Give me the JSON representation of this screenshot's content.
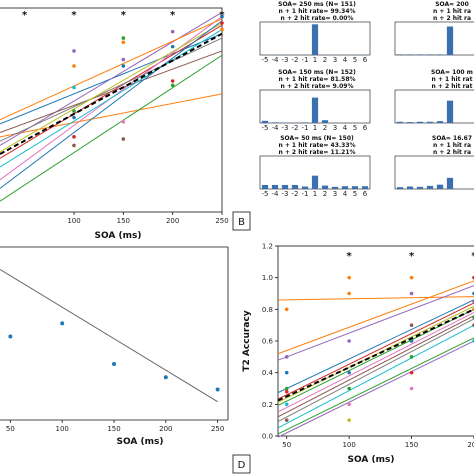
{
  "panel_labels": {
    "b": "B",
    "d": "D"
  },
  "chart_data": [
    {
      "type": "line",
      "panel": "A",
      "xlabel": "SOA (ms)",
      "ylabel": "",
      "xlim": [
        25,
        250
      ],
      "ylim": [
        0.05,
        1.0
      ],
      "xticks": [
        100,
        150,
        200,
        250
      ],
      "significance_markers": [
        {
          "x": 50,
          "label": "*"
        },
        {
          "x": 100,
          "label": "*"
        },
        {
          "x": 150,
          "label": "*"
        },
        {
          "x": 200,
          "label": "*"
        },
        {
          "x": 250,
          "label": "*"
        }
      ],
      "grid": false,
      "fit_lines": [
        {
          "color": "#1f77b4",
          "y25": 0.46,
          "y250": 0.88
        },
        {
          "color": "#ff7f0e",
          "y25": 0.4,
          "y250": 0.6
        },
        {
          "color": "#2ca02c",
          "y25": 0.1,
          "y250": 0.78
        },
        {
          "color": "#d62728",
          "y25": 0.3,
          "y250": 0.92
        },
        {
          "color": "#9467bd",
          "y25": 0.36,
          "y250": 0.98
        },
        {
          "color": "#8c564b",
          "y25": 0.42,
          "y250": 0.8
        },
        {
          "color": "#e377c2",
          "y25": 0.2,
          "y250": 0.96
        },
        {
          "color": "#7f7f7f",
          "y25": 0.38,
          "y250": 0.86
        },
        {
          "color": "#bcbd22",
          "y25": 0.33,
          "y250": 0.93
        },
        {
          "color": "#17becf",
          "y25": 0.26,
          "y250": 0.9
        },
        {
          "color": "#ff7f0e",
          "y25": 0.48,
          "y250": 0.95
        },
        {
          "color": "#1f77b4",
          "y25": 0.16,
          "y250": 0.94
        }
      ],
      "mean_fit": {
        "style": "dashed",
        "color": "#000000",
        "y25": 0.32,
        "y250": 0.88
      },
      "points": [
        {
          "x": 100,
          "y": 0.8,
          "color": "#9467bd"
        },
        {
          "x": 100,
          "y": 0.73,
          "color": "#ff7f0e"
        },
        {
          "x": 100,
          "y": 0.63,
          "color": "#17becf"
        },
        {
          "x": 100,
          "y": 0.52,
          "color": "#2ca02c"
        },
        {
          "x": 100,
          "y": 0.49,
          "color": "#1f77b4"
        },
        {
          "x": 100,
          "y": 0.4,
          "color": "#d62728"
        },
        {
          "x": 100,
          "y": 0.36,
          "color": "#8c564b"
        },
        {
          "x": 150,
          "y": 0.86,
          "color": "#2ca02c"
        },
        {
          "x": 150,
          "y": 0.84,
          "color": "#ff7f0e"
        },
        {
          "x": 150,
          "y": 0.76,
          "color": "#9467bd"
        },
        {
          "x": 150,
          "y": 0.73,
          "color": "#1f77b4"
        },
        {
          "x": 150,
          "y": 0.47,
          "color": "#e377c2"
        },
        {
          "x": 150,
          "y": 0.39,
          "color": "#8c564b"
        },
        {
          "x": 200,
          "y": 0.89,
          "color": "#9467bd"
        },
        {
          "x": 200,
          "y": 0.82,
          "color": "#1f77b4"
        },
        {
          "x": 200,
          "y": 0.66,
          "color": "#d62728"
        },
        {
          "x": 200,
          "y": 0.64,
          "color": "#2ca02c"
        },
        {
          "x": 250,
          "y": 0.96,
          "color": "#1f77b4"
        },
        {
          "x": 250,
          "y": 0.93,
          "color": "#d62728"
        },
        {
          "x": 250,
          "y": 0.9,
          "color": "#ff7f0e"
        }
      ]
    },
    {
      "type": "bar",
      "panel": "B",
      "subplots": [
        {
          "title": "SOA= 250 ms (N= 151)",
          "hit1": "n + 1 hit rate= 99.34%",
          "hit2": "n + 2 hit rate= 0.00%",
          "categories": [
            "-5",
            "-4",
            "-3",
            "-2",
            "-1",
            "1",
            "2",
            "3",
            "4",
            "5",
            "6"
          ],
          "values": [
            0,
            0,
            0,
            0,
            0.01,
            0.99,
            0,
            0,
            0,
            0,
            0
          ]
        },
        {
          "title": "SOA= 200 ",
          "hit1": "n + 1 hit ra",
          "hit2": "n + 2 hit ra",
          "categories": [],
          "values": [
            0.02,
            0.02,
            0.02,
            0.02,
            0.02,
            0.92
          ]
        },
        {
          "title": "SOA= 150 ms (N= 152)",
          "hit1": "n + 1 hit rate= 81.58%",
          "hit2": "n + 2 hit rate= 9.09%",
          "categories": [
            "-5",
            "-4",
            "-3",
            "-2",
            "-1",
            "1",
            "2",
            "3",
            "4",
            "5",
            "6"
          ],
          "values": [
            0.07,
            0.02,
            0.01,
            0.01,
            0.02,
            0.82,
            0.09,
            0.01,
            0,
            0,
            0
          ]
        },
        {
          "title": "SOA= 100 m",
          "hit1": "n + 1 hit rat",
          "hit2": "n + 2 hit rat",
          "categories": [],
          "values": [
            0.04,
            0.03,
            0.04,
            0.04,
            0.06,
            0.72
          ]
        },
        {
          "title": "SOA= 50 ms (N= 150)",
          "hit1": "n + 1 hit rate= 43.33%",
          "hit2": "n + 2 hit rate= 11.21%",
          "categories": [
            "-5",
            "-4",
            "-3",
            "-2",
            "-1",
            "1",
            "2",
            "3",
            "4",
            "5",
            "6"
          ],
          "values": [
            0.13,
            0.13,
            0.13,
            0.13,
            0.08,
            0.43,
            0.11,
            0.07,
            0.09,
            0.09,
            0.09
          ]
        },
        {
          "title": "SOA= 16.67 ",
          "hit1": "n + 1 hit ra",
          "hit2": "n + 2 hit ra",
          "categories": [],
          "values": [
            0.06,
            0.08,
            0.07,
            0.1,
            0.14,
            0.36
          ]
        }
      ]
    },
    {
      "type": "scatter",
      "panel": "C",
      "xlabel": "SOA (ms)",
      "ylabel": "",
      "xlim": [
        40,
        260
      ],
      "ylim": [
        0.5,
        2.2
      ],
      "xticks": [
        50,
        100,
        150,
        200,
        250
      ],
      "points": [
        {
          "x": 50,
          "y": 1.32
        },
        {
          "x": 100,
          "y": 1.45
        },
        {
          "x": 150,
          "y": 1.05
        },
        {
          "x": 200,
          "y": 0.92
        },
        {
          "x": 250,
          "y": 0.8
        }
      ],
      "fit_line": {
        "x0": 40,
        "y0": 1.98,
        "x1": 250,
        "y1": 0.68
      }
    },
    {
      "type": "line",
      "panel": "D",
      "xlabel": "SOA (ms)",
      "ylabel": "T2 Accuracy",
      "xlim": [
        43,
        200
      ],
      "ylim": [
        0.0,
        1.2
      ],
      "xticks": [
        50,
        100,
        150,
        200
      ],
      "yticks": [
        0.0,
        0.2,
        0.4,
        0.6,
        0.8,
        1.0,
        1.2
      ],
      "significance_markers": [
        {
          "x": 100,
          "label": "*"
        },
        {
          "x": 150,
          "label": "*"
        },
        {
          "x": 200,
          "label": "*"
        }
      ],
      "fit_lines": [
        {
          "color": "#ff7f0e",
          "y50": 0.86,
          "y200": 0.88
        },
        {
          "color": "#ff7f0e",
          "y50": 0.54,
          "y200": 0.98
        },
        {
          "color": "#9467bd",
          "y50": 0.5,
          "y200": 0.95
        },
        {
          "color": "#1f77b4",
          "y50": 0.3,
          "y200": 0.86
        },
        {
          "color": "#d62728",
          "y50": 0.26,
          "y200": 0.84
        },
        {
          "color": "#2ca02c",
          "y50": 0.22,
          "y200": 0.8
        },
        {
          "color": "#e377c2",
          "y50": 0.18,
          "y200": 0.78
        },
        {
          "color": "#8c564b",
          "y50": 0.15,
          "y200": 0.76
        },
        {
          "color": "#7f7f7f",
          "y50": 0.12,
          "y200": 0.74
        },
        {
          "color": "#bcbd22",
          "y50": 0.24,
          "y200": 0.82
        },
        {
          "color": "#17becf",
          "y50": 0.08,
          "y200": 0.7
        },
        {
          "color": "#2ca02c",
          "y50": 0.04,
          "y200": 0.62
        },
        {
          "color": "#9467bd",
          "y50": 0.02,
          "y200": 0.6
        }
      ],
      "mean_fit": {
        "style": "dashed",
        "color": "#000000",
        "y50": 0.25,
        "y200": 0.8
      },
      "points": [
        {
          "x": 50,
          "y": 0.8,
          "color": "#ff7f0e"
        },
        {
          "x": 50,
          "y": 0.5,
          "color": "#9467bd"
        },
        {
          "x": 50,
          "y": 0.4,
          "color": "#1f77b4"
        },
        {
          "x": 50,
          "y": 0.3,
          "color": "#2ca02c"
        },
        {
          "x": 50,
          "y": 0.28,
          "color": "#d62728"
        },
        {
          "x": 50,
          "y": 0.2,
          "color": "#17becf"
        },
        {
          "x": 50,
          "y": 0.1,
          "color": "#8c564b"
        },
        {
          "x": 100,
          "y": 1.0,
          "color": "#ff7f0e"
        },
        {
          "x": 100,
          "y": 0.9,
          "color": "#ff7f0e"
        },
        {
          "x": 100,
          "y": 0.6,
          "color": "#9467bd"
        },
        {
          "x": 100,
          "y": 0.4,
          "color": "#1f77b4"
        },
        {
          "x": 100,
          "y": 0.3,
          "color": "#2ca02c"
        },
        {
          "x": 100,
          "y": 0.2,
          "color": "#e377c2"
        },
        {
          "x": 100,
          "y": 0.1,
          "color": "#bcbd22"
        },
        {
          "x": 150,
          "y": 1.0,
          "color": "#ff7f0e"
        },
        {
          "x": 150,
          "y": 0.9,
          "color": "#9467bd"
        },
        {
          "x": 150,
          "y": 0.7,
          "color": "#8c564b"
        },
        {
          "x": 150,
          "y": 0.6,
          "color": "#1f77b4"
        },
        {
          "x": 150,
          "y": 0.5,
          "color": "#2ca02c"
        },
        {
          "x": 150,
          "y": 0.4,
          "color": "#d62728"
        },
        {
          "x": 150,
          "y": 0.3,
          "color": "#e377c2"
        },
        {
          "x": 200,
          "y": 1.0,
          "color": "#d62728"
        },
        {
          "x": 200,
          "y": 0.9,
          "color": "#1f77b4"
        },
        {
          "x": 200,
          "y": 0.85,
          "color": "#9467bd"
        },
        {
          "x": 200,
          "y": 0.8,
          "color": "#ff7f0e"
        },
        {
          "x": 200,
          "y": 0.75,
          "color": "#2ca02c"
        },
        {
          "x": 200,
          "y": 0.7,
          "color": "#8c564b"
        },
        {
          "x": 200,
          "y": 0.6,
          "color": "#17becf"
        }
      ]
    }
  ]
}
